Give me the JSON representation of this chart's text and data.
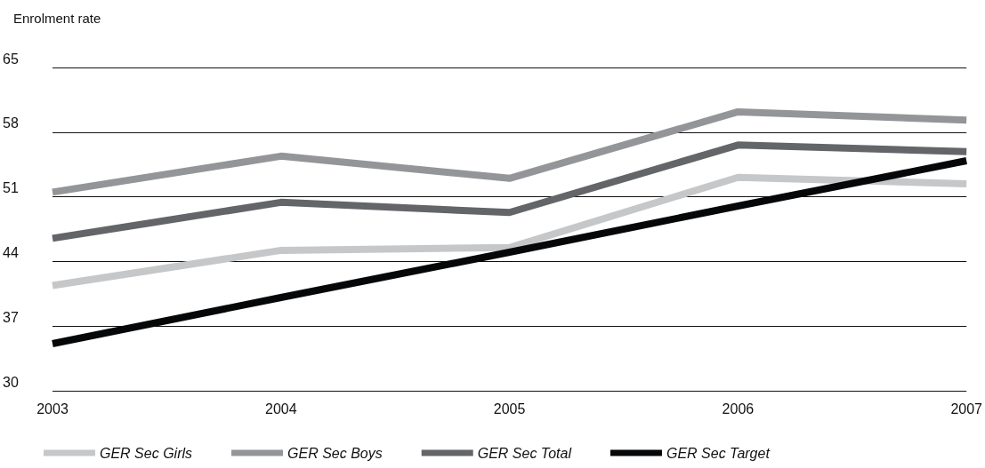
{
  "chart_data": {
    "type": "line",
    "ylabel": "Enrolment rate",
    "categories": [
      "2003",
      "2004",
      "2005",
      "2006",
      "2007"
    ],
    "series": [
      {
        "name": "GER Sec Girls",
        "color": "#c6c7c9",
        "values": [
          41.4,
          45.2,
          45.5,
          53.1,
          52.4
        ]
      },
      {
        "name": "GER Sec Boys",
        "color": "#939598",
        "values": [
          51.5,
          55.4,
          53.0,
          60.2,
          59.3
        ]
      },
      {
        "name": "GER Sec Total",
        "color": "#636569",
        "values": [
          46.5,
          50.4,
          49.3,
          56.6,
          55.9
        ]
      },
      {
        "name": "GER Sec Target",
        "color": "#050708",
        "values": [
          35.1,
          40.1,
          45.0,
          50.0,
          54.9
        ]
      }
    ],
    "ylim": [
      30,
      65
    ],
    "yticks": [
      30,
      37,
      44,
      51,
      58,
      65
    ],
    "grid": "y",
    "legend": "bottom left",
    "marker": "none",
    "line_style": "solid"
  }
}
